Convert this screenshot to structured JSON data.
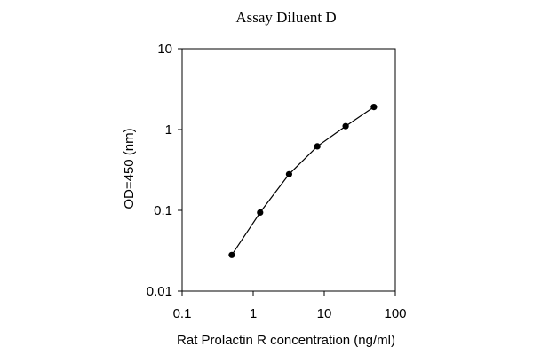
{
  "chart_data": {
    "type": "line",
    "title": "Assay Diluent D",
    "xlabel": "Rat Prolactin R concentration (ng/ml)",
    "ylabel": "OD=450 (nm)",
    "xscale": "log",
    "yscale": "log",
    "xlim": [
      0.1,
      100
    ],
    "ylim": [
      0.01,
      10
    ],
    "xticks": [
      0.1,
      1,
      10,
      100
    ],
    "xtick_labels": [
      "0.1",
      "1",
      "10",
      "100"
    ],
    "yticks": [
      0.01,
      0.1,
      1,
      10
    ],
    "ytick_labels": [
      "0.01",
      "0.1",
      "1",
      "10"
    ],
    "grid": false,
    "series": [
      {
        "x": [
          0.5,
          1.25,
          3.2,
          8,
          20,
          50
        ],
        "y": [
          0.028,
          0.094,
          0.28,
          0.62,
          1.1,
          1.9
        ],
        "color": "#000000",
        "marker": "circle"
      }
    ]
  }
}
